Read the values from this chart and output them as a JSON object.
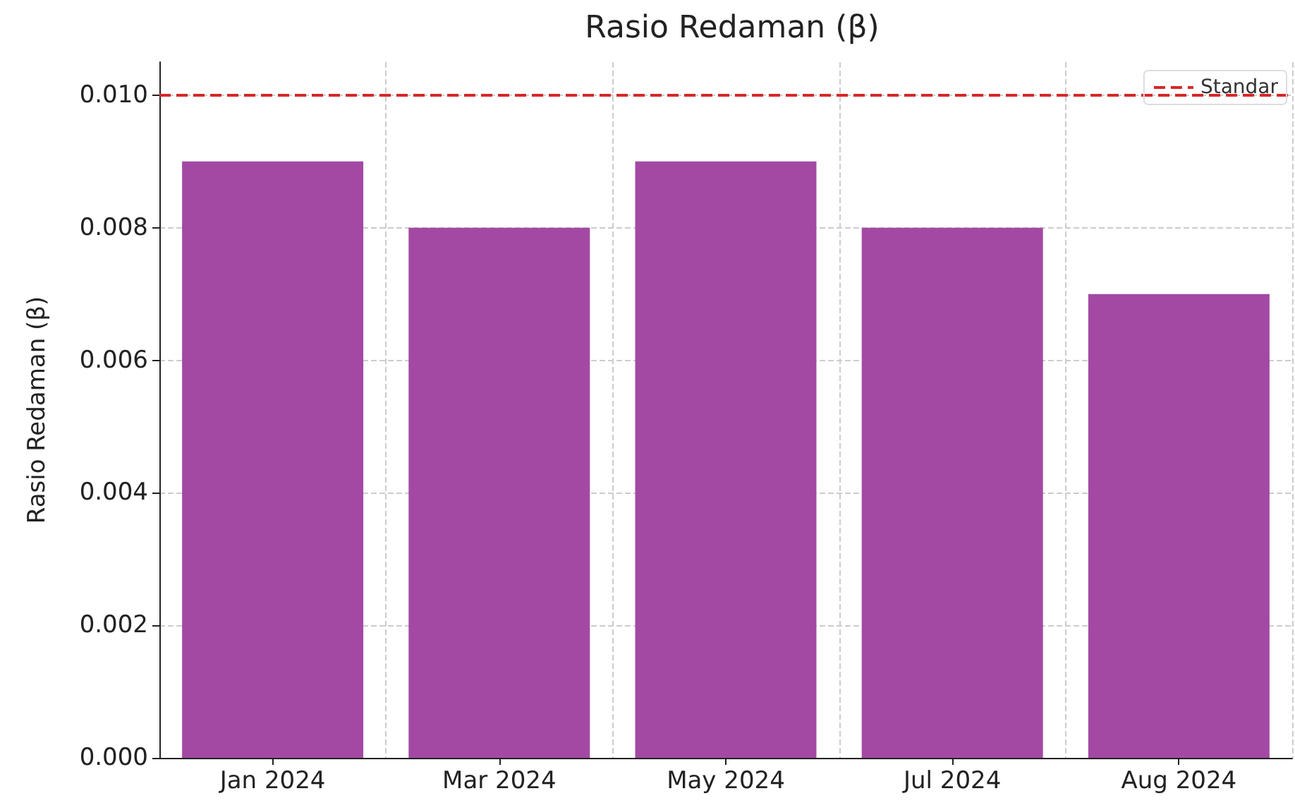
{
  "chart_data": {
    "type": "bar",
    "title": "Rasio Redaman (β)",
    "ylabel": "Rasio Redaman (β)",
    "categories": [
      "Jan 2024",
      "Mar 2024",
      "May 2024",
      "Jul 2024",
      "Aug 2024"
    ],
    "values": [
      0.009,
      0.008,
      0.009,
      0.008,
      0.007
    ],
    "color": "#a349a4",
    "ylim": [
      0,
      0.0105
    ],
    "yticks": [
      {
        "value": 0,
        "label": "0.000"
      },
      {
        "value": 0.002,
        "label": "0.002"
      },
      {
        "value": 0.004,
        "label": "0.004"
      },
      {
        "value": 0.006,
        "label": "0.006"
      },
      {
        "value": 0.008,
        "label": "0.008"
      },
      {
        "value": 0.01,
        "label": "0.010"
      }
    ],
    "ref_lines": [
      {
        "axis": "y",
        "value": 0.01,
        "label": "Standar",
        "color": "#d62728",
        "line_style": "dashed"
      }
    ],
    "grid": true,
    "legend": "top right"
  }
}
